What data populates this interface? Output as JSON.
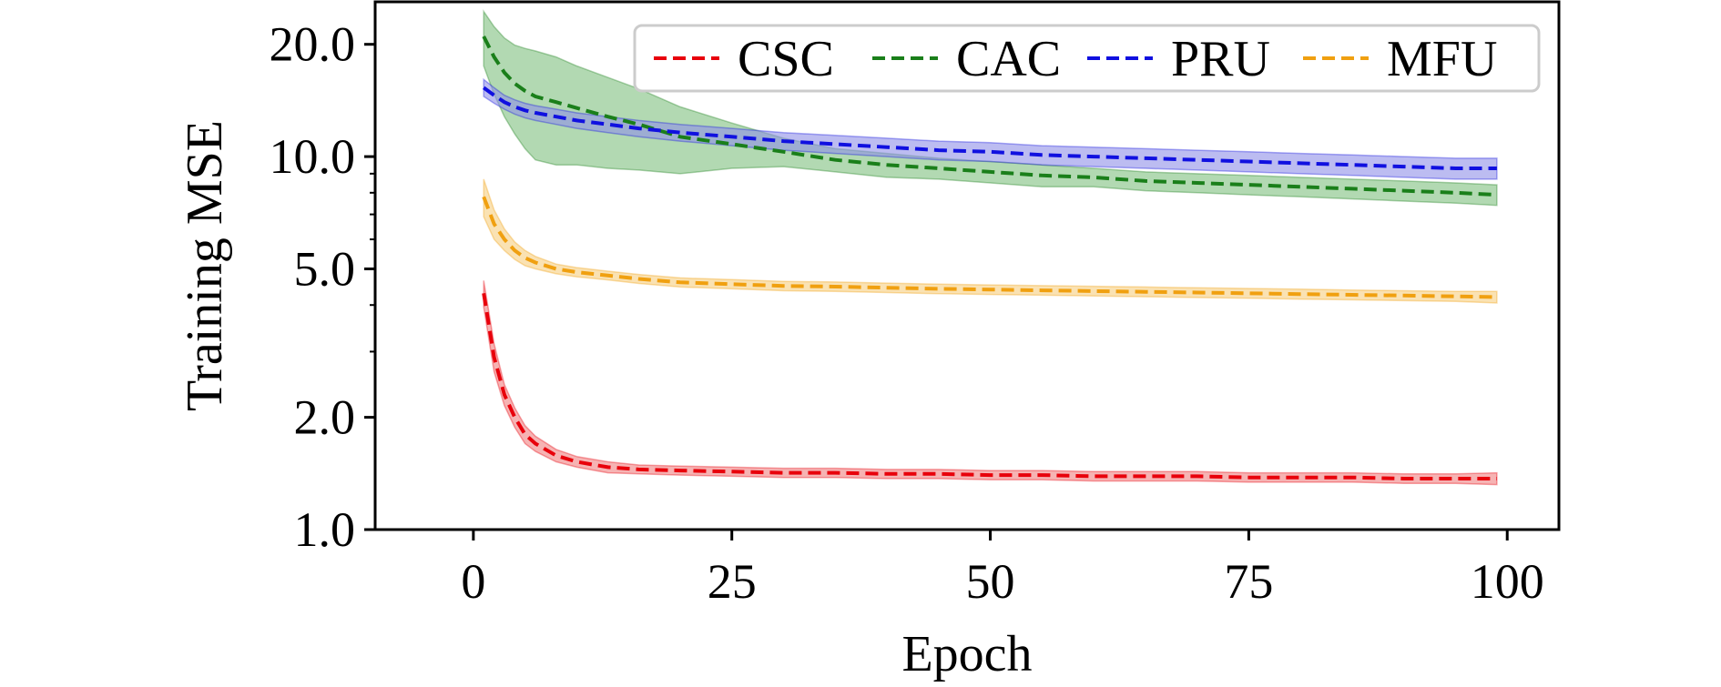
{
  "chart_data": {
    "type": "line",
    "title": "",
    "xlabel": "Epoch",
    "ylabel": "Training MSE",
    "xlim": [
      -9.5,
      105
    ],
    "ylim": [
      1.0,
      26.0
    ],
    "yscale": "log",
    "grid": false,
    "legend_position": "top-right",
    "x_ticks": [
      0,
      25,
      50,
      75,
      100
    ],
    "x_tick_labels": [
      "0",
      "25",
      "50",
      "75",
      "100"
    ],
    "y_ticks": [
      1.0,
      2.0,
      5.0,
      10.0,
      20.0
    ],
    "y_tick_labels": [
      "1.0",
      "2.0",
      "5.0",
      "10.0",
      "20.0"
    ],
    "x": [
      1,
      2,
      3,
      4,
      5,
      6,
      8,
      10,
      13,
      16,
      20,
      25,
      30,
      35,
      40,
      45,
      50,
      55,
      60,
      65,
      70,
      75,
      80,
      85,
      90,
      95,
      99
    ],
    "series": [
      {
        "name": "CSC",
        "color": "#e8000b",
        "band_color": "#f08080",
        "values": [
          4.3,
          2.9,
          2.3,
          2.0,
          1.8,
          1.7,
          1.58,
          1.52,
          1.47,
          1.45,
          1.44,
          1.43,
          1.42,
          1.42,
          1.41,
          1.41,
          1.4,
          1.4,
          1.39,
          1.39,
          1.39,
          1.38,
          1.38,
          1.38,
          1.37,
          1.37,
          1.37
        ],
        "band": [
          0.35,
          0.25,
          0.15,
          0.12,
          0.1,
          0.08,
          0.06,
          0.05,
          0.05,
          0.04,
          0.04,
          0.04,
          0.04,
          0.04,
          0.04,
          0.04,
          0.04,
          0.04,
          0.04,
          0.04,
          0.04,
          0.04,
          0.04,
          0.04,
          0.04,
          0.04,
          0.05
        ]
      },
      {
        "name": "CAC",
        "color": "#1a7f1a",
        "band_color": "#7fbf7f",
        "values": [
          21.0,
          18.5,
          16.8,
          15.7,
          15.0,
          14.5,
          14.0,
          13.5,
          12.8,
          12.2,
          11.3,
          10.8,
          10.3,
          9.8,
          9.5,
          9.3,
          9.1,
          8.9,
          8.8,
          8.6,
          8.5,
          8.4,
          8.3,
          8.2,
          8.1,
          8.0,
          7.9
        ],
        "band": [
          3.5,
          3.8,
          4.0,
          4.2,
          4.5,
          4.7,
          4.5,
          4.0,
          3.5,
          3.0,
          2.3,
          1.5,
          0.9,
          0.7,
          0.7,
          0.6,
          0.6,
          0.6,
          0.5,
          0.5,
          0.5,
          0.5,
          0.5,
          0.5,
          0.5,
          0.5,
          0.5
        ]
      },
      {
        "name": "PRU",
        "color": "#1010e0",
        "band_color": "#8f8fe8",
        "values": [
          15.3,
          14.6,
          14.0,
          13.6,
          13.3,
          13.1,
          12.8,
          12.5,
          12.2,
          11.9,
          11.6,
          11.3,
          11.0,
          10.8,
          10.6,
          10.4,
          10.3,
          10.1,
          10.0,
          9.9,
          9.8,
          9.7,
          9.6,
          9.5,
          9.4,
          9.3,
          9.3
        ],
        "band": [
          0.8,
          0.7,
          0.6,
          0.6,
          0.6,
          0.6,
          0.6,
          0.6,
          0.6,
          0.6,
          0.6,
          0.6,
          0.6,
          0.6,
          0.6,
          0.6,
          0.6,
          0.6,
          0.6,
          0.6,
          0.6,
          0.6,
          0.6,
          0.6,
          0.6,
          0.6,
          0.6
        ]
      },
      {
        "name": "MFU",
        "color": "#f0a010",
        "band_color": "#f6cf80",
        "values": [
          7.8,
          6.6,
          6.0,
          5.6,
          5.35,
          5.2,
          5.0,
          4.9,
          4.8,
          4.7,
          4.6,
          4.55,
          4.5,
          4.48,
          4.45,
          4.42,
          4.4,
          4.38,
          4.36,
          4.34,
          4.32,
          4.3,
          4.28,
          4.26,
          4.24,
          4.22,
          4.2
        ],
        "band": [
          0.9,
          0.6,
          0.4,
          0.3,
          0.25,
          0.2,
          0.15,
          0.14,
          0.13,
          0.13,
          0.13,
          0.13,
          0.13,
          0.13,
          0.13,
          0.13,
          0.13,
          0.13,
          0.13,
          0.13,
          0.13,
          0.13,
          0.13,
          0.13,
          0.13,
          0.13,
          0.15
        ]
      }
    ]
  }
}
